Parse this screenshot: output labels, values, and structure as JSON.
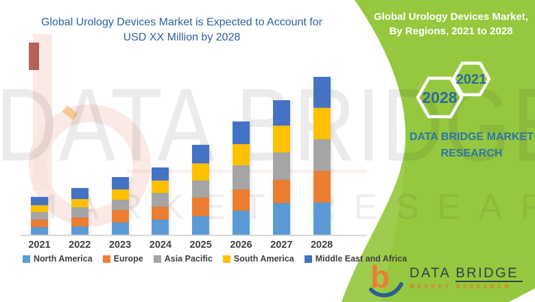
{
  "header": {
    "title_line1": "Global Urology Devices Market is Expected to Account for",
    "title_line2": "USD XX Million by 2028"
  },
  "side_panel": {
    "accent_green": "#95C83E",
    "title_line1": "Global Urology Devices Market,",
    "title_line2": "By Regions, 2021 to 2028",
    "hexagons": [
      {
        "label": "2021"
      },
      {
        "label": "2028"
      }
    ],
    "brand_line1": "DATA BRIDGE MARKET",
    "brand_line2": "RESEARCH"
  },
  "watermark": {
    "line1": "DATA BRIDGE",
    "line2": "MARKET RESEARCH"
  },
  "footer_logo": {
    "name_part1": "DATA",
    "name_part2": "BRIDGE",
    "subtitle": "MARKET RESEARCH",
    "icon": "data-bridge-b-swoosh-icon"
  },
  "chart_data": {
    "type": "bar",
    "stacked": true,
    "title": "Global Urology Devices Market is Expected to Account for USD XX Million by 2028",
    "xlabel": "",
    "ylabel": "",
    "value_axis_visible": false,
    "grid": false,
    "legend_position": "bottom",
    "note": "actual values masked as XX in source; values below are relative heights read from the chart",
    "categories": [
      "2021",
      "2022",
      "2023",
      "2024",
      "2025",
      "2026",
      "2027",
      "2028"
    ],
    "series": [
      {
        "name": "North America",
        "color": "#5B9BD5",
        "values": [
          11,
          12,
          18.5,
          22,
          27.5,
          35,
          46.5,
          47.5
        ]
      },
      {
        "name": "Europe",
        "color": "#ED7D31",
        "values": [
          11,
          13.5,
          17.5,
          19,
          26.5,
          31.5,
          33.5,
          46
        ]
      },
      {
        "name": "Asia Pacific",
        "color": "#A5A5A5",
        "values": [
          11.5,
          14.5,
          15,
          20,
          25.5,
          34.5,
          40,
          45.5
        ]
      },
      {
        "name": "South America",
        "color": "#FFC000",
        "values": [
          10,
          12.5,
          15,
          18.5,
          25,
          31,
          39.5,
          46
        ]
      },
      {
        "name": "Middle East and Africa",
        "color": "#4472C4",
        "values": [
          12,
          16,
          18.5,
          19,
          27,
          33,
          36.5,
          45.5
        ]
      }
    ],
    "totals": [
      55.5,
      68.5,
      84.5,
      98.5,
      131.5,
      165,
      196,
      230.5
    ]
  }
}
